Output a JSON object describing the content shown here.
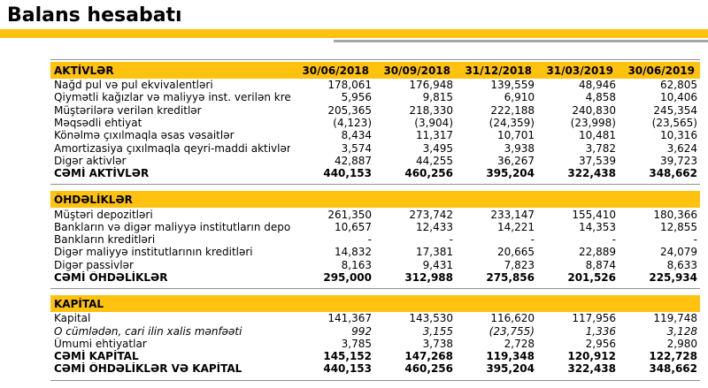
{
  "page": {
    "title": "Balans hesabatı"
  },
  "decor": {
    "accent_yellow": "#FFC20E",
    "gray_bar_color": "#A6A6A6",
    "rule_color": "#909090"
  },
  "table": {
    "date_columns": [
      "30/06/2018",
      "30/09/2018",
      "31/12/2018",
      "31/03/2019",
      "30/06/2019"
    ],
    "sections": [
      {
        "name": "aktivler",
        "header": "AKTİVLƏR",
        "show_dates": true,
        "rows": [
          {
            "label": "Nağd pul və pul ekvivalentləri",
            "values": [
              "178,061",
              "176,948",
              "139,559",
              "48,946",
              "62,805"
            ],
            "style": "normal"
          },
          {
            "label": "Qiymətli kağızlar və maliyyə inst. verilən kreditlər",
            "values": [
              "5,956",
              "9,815",
              "6,910",
              "4,858",
              "10,406"
            ],
            "style": "normal"
          },
          {
            "label": "Müştərilərə verilən kreditlər",
            "values": [
              "205,365",
              "218,330",
              "222,188",
              "240,830",
              "245,354"
            ],
            "style": "normal"
          },
          {
            "label": "Məqsədli ehtiyat",
            "values": [
              "(4,123)",
              "(3,904)",
              "(24,359)",
              "(23,998)",
              "(23,565)"
            ],
            "style": "normal"
          },
          {
            "label": "Könəlmə çıxılmaqla əsas vəsaitlər",
            "values": [
              "8,434",
              "11,317",
              "10,701",
              "10,481",
              "10,316"
            ],
            "style": "normal"
          },
          {
            "label": "Amortizasiya çıxılmaqla qeyri-maddi aktivlər",
            "values": [
              "3,574",
              "3,495",
              "3,938",
              "3,782",
              "3,624"
            ],
            "style": "normal"
          },
          {
            "label": "Digər aktivlər",
            "values": [
              "42,887",
              "44,255",
              "36,267",
              "37,539",
              "39,723"
            ],
            "style": "normal"
          },
          {
            "label": "CƏMİ AKTİVLƏR",
            "values": [
              "440,153",
              "460,256",
              "395,204",
              "322,438",
              "348,662"
            ],
            "style": "bold"
          }
        ]
      },
      {
        "name": "ohdelikler",
        "header": "ÖHDƏLİKLƏR",
        "show_dates": false,
        "rows": [
          {
            "label": "Müştəri depozitləri",
            "values": [
              "261,350",
              "273,742",
              "233,147",
              "155,410",
              "180,366"
            ],
            "style": "normal"
          },
          {
            "label": "Bankların və digər maliyyə institutların depozitləri",
            "values": [
              "10,657",
              "12,433",
              "14,221",
              "14,353",
              "12,855"
            ],
            "style": "normal"
          },
          {
            "label": "Bankların kreditləri",
            "values": [
              "-",
              "-",
              "-",
              "-",
              "-"
            ],
            "style": "normal"
          },
          {
            "label": "Digər maliyyə institutlarının kreditləri",
            "values": [
              "14,832",
              "17,381",
              "20,665",
              "22,889",
              "24,079"
            ],
            "style": "normal"
          },
          {
            "label": "Digər passivlər",
            "values": [
              "8,163",
              "9,431",
              "7,823",
              "8,874",
              "8,633"
            ],
            "style": "normal"
          },
          {
            "label": "CƏMİ ÖHDƏLİKLƏR",
            "values": [
              "295,000",
              "312,988",
              "275,856",
              "201,526",
              "225,934"
            ],
            "style": "bold"
          }
        ]
      },
      {
        "name": "kapital",
        "header": "KAPİTAL",
        "show_dates": false,
        "rows": [
          {
            "label": "Kapital",
            "values": [
              "141,367",
              "143,530",
              "116,620",
              "117,956",
              "119,748"
            ],
            "style": "normal"
          },
          {
            "label": "O cümlədən, cari ilin xalis mənfəəti",
            "values": [
              "992",
              "3,155",
              "(23,755)",
              "1,336",
              "3,128"
            ],
            "style": "italic"
          },
          {
            "label": "Ümumi ehtiyatlar",
            "values": [
              "3,785",
              "3,738",
              "2,728",
              "2,956",
              "2,980"
            ],
            "style": "normal"
          },
          {
            "label": "CƏMİ KAPİTAL",
            "values": [
              "145,152",
              "147,268",
              "119,348",
              "120,912",
              "122,728"
            ],
            "style": "bold"
          },
          {
            "label": "CƏMİ ÖHDƏLİKLƏR VƏ KAPİTAL",
            "values": [
              "440,153",
              "460,256",
              "395,204",
              "322,438",
              "348,662"
            ],
            "style": "bold"
          }
        ]
      }
    ]
  }
}
